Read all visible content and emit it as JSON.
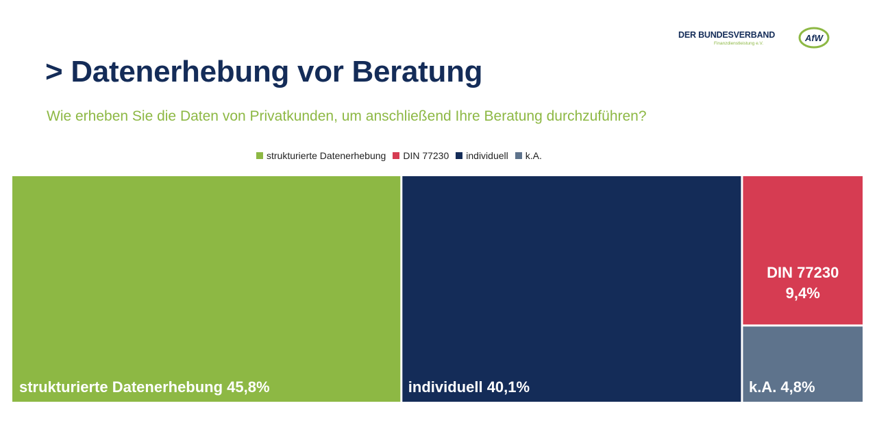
{
  "logo": {
    "name": "DER BUNDESVERBAND",
    "sub": "Finanzdienstleistung e.V.",
    "mark": "AfW"
  },
  "title": "> Datenerhebung vor Beratung",
  "subtitle": "Wie erheben Sie die Daten von Privatkunden, um anschließend Ihre Beratung durchzuführen?",
  "chart_data": {
    "type": "treemap",
    "legend": [
      "strukturierte Datenerhebung",
      "DIN 77230",
      "individuell",
      "k.A."
    ],
    "items": [
      {
        "name": "strukturierte Datenerhebung",
        "value": 45.8,
        "label": "strukturierte Datenerhebung 45,8%",
        "color": "#8db844"
      },
      {
        "name": "individuell",
        "value": 40.1,
        "label": "individuell 40,1%",
        "color": "#142c58"
      },
      {
        "name": "DIN 77230",
        "value": 9.4,
        "label_lines": [
          "DIN 77230",
          "9,4%"
        ],
        "color": "#d63c52"
      },
      {
        "name": "k.A.",
        "value": 4.8,
        "label": "k.A. 4,8%",
        "color": "#5e738c"
      }
    ]
  }
}
